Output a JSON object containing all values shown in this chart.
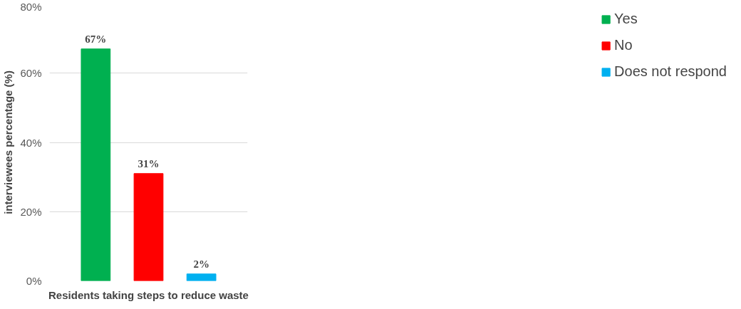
{
  "chart_data": {
    "type": "bar",
    "xlabel": "Residents taking steps to reduce waste",
    "ylabel": "interviewees percentage (%)",
    "categories": [
      null
    ],
    "series": [
      {
        "name": "Yes",
        "color": "#00b050",
        "values": [
          67
        ],
        "value_labels": [
          "67%"
        ]
      },
      {
        "name": "No",
        "color": "#ff0000",
        "values": [
          31
        ],
        "value_labels": [
          "31%"
        ]
      },
      {
        "name": "Does not respond",
        "color": "#00b0f0",
        "values": [
          2
        ],
        "value_labels": [
          "2%"
        ]
      }
    ],
    "ylim": [
      0,
      80
    ],
    "yticks": [
      {
        "value": 0,
        "label": "0%"
      },
      {
        "value": 20,
        "label": "20%"
      },
      {
        "value": 40,
        "label": "40%"
      },
      {
        "value": 60,
        "label": "60%"
      },
      {
        "value": 80,
        "label": "80%"
      }
    ],
    "grid": "y",
    "legend": "right"
  }
}
